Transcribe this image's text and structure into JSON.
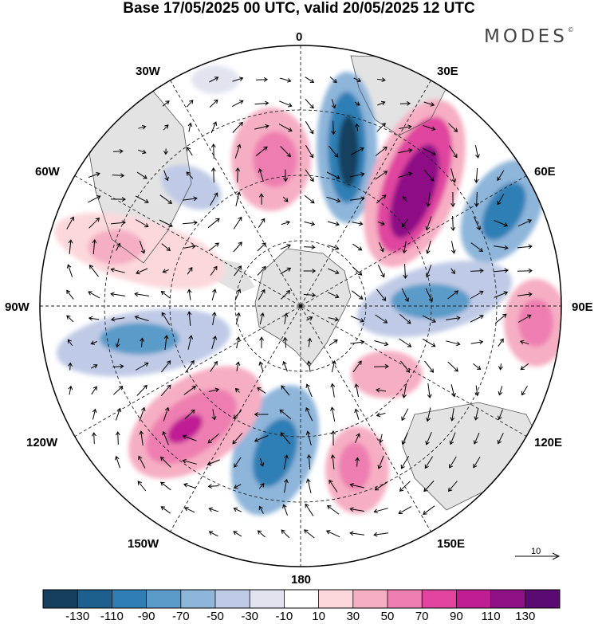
{
  "title": "Base 17/05/2025 00 UTC, valid 20/05/2025 12 UTC",
  "logo": "MODES",
  "logo_mark": "©",
  "longitude_labels": {
    "lon_0": "0",
    "lon_30e": "30E",
    "lon_60e": "60E",
    "lon_90e": "90E",
    "lon_120e": "120E",
    "lon_150e": "150E",
    "lon_180": "180",
    "lon_150w": "150W",
    "lon_120w": "120W",
    "lon_90w": "90W",
    "lon_60w": "60W",
    "lon_30w": "30W"
  },
  "reference_vector": {
    "label": "10"
  },
  "colorbar": {
    "tick_labels": [
      "-130",
      "-110",
      "-90",
      "-70",
      "-50",
      "-30",
      "-10",
      "10",
      "30",
      "50",
      "70",
      "90",
      "110",
      "130"
    ],
    "colors": [
      "#163f5f",
      "#1d5f8e",
      "#2f7fb6",
      "#5a9bc9",
      "#8eb5da",
      "#bfcae6",
      "#e3e3f0",
      "#ffffff",
      "#fcd8dc",
      "#f6aec3",
      "#ee7eb1",
      "#e0449f",
      "#c01d95",
      "#8e1186",
      "#5a0a72"
    ]
  },
  "anomalies": [
    {
      "id": "blue-0",
      "level": -130
    },
    {
      "id": "magenta-30e",
      "level": 110
    },
    {
      "id": "blue-60e",
      "level": -90
    },
    {
      "id": "pink-90e",
      "level": 70
    },
    {
      "id": "blue-90e",
      "level": -70
    },
    {
      "id": "pink-120e",
      "level": 50
    },
    {
      "id": "pink-150e",
      "level": 70
    },
    {
      "id": "blue-180",
      "level": -90
    },
    {
      "id": "pink-150w",
      "level": 90
    },
    {
      "id": "blue-100w",
      "level": -70
    },
    {
      "id": "pink-70w",
      "level": 50
    },
    {
      "id": "pink-20w",
      "level": 70
    },
    {
      "id": "blue-45w",
      "level": -50
    }
  ]
}
